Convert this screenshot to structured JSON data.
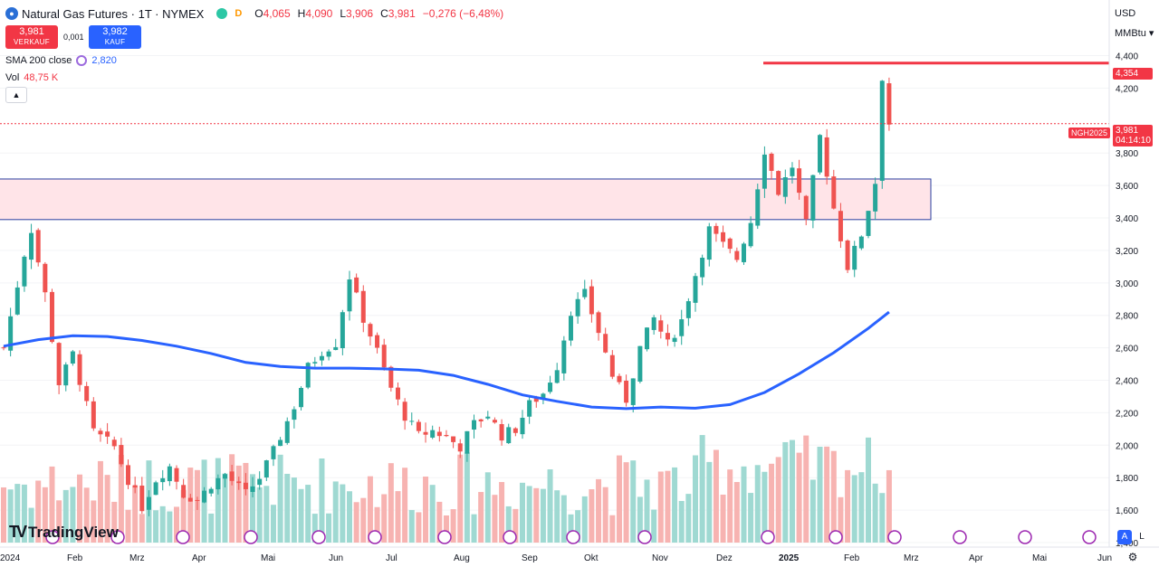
{
  "header": {
    "title": "Natural Gas Futures · 1T · NYMEX",
    "interval_badge": "D",
    "ohlc": [
      {
        "label": "O",
        "value": "4,065"
      },
      {
        "label": "H",
        "value": "4,090"
      },
      {
        "label": "L",
        "value": "3,906"
      },
      {
        "label": "C",
        "value": "3,981"
      },
      {
        "label": "",
        "value": "−0,276 (−6,48%)"
      }
    ]
  },
  "trade": {
    "sell_price": "3,981",
    "sell_label": "VERKAUF",
    "spread": "0,001",
    "buy_price": "3,982",
    "buy_label": "KAUF"
  },
  "indicators": {
    "sma_label": "SMA 200 close",
    "sma_value": "2,820",
    "vol_label": "Vol",
    "vol_value": "48,75 K"
  },
  "axis": {
    "currency": "USD",
    "unit": "MMBtu",
    "y_ticks": [
      "4,400",
      "4,200",
      "3,800",
      "3,600",
      "3,400",
      "3,200",
      "3,000",
      "2,800",
      "2,600",
      "2,400",
      "2,200",
      "2,000",
      "1,800",
      "1,600",
      "1,400"
    ],
    "x_labels": [
      "2024",
      "Feb",
      "Mrz",
      "Apr",
      "Mai",
      "Jun",
      "Jul",
      "Aug",
      "Sep",
      "Okt",
      "Nov",
      "Dez",
      "2025",
      "Feb",
      "Mrz",
      "Apr",
      "Mai",
      "Jun"
    ]
  },
  "tags": {
    "resistance": "4,354",
    "current_price": "3,981",
    "countdown": "04:14:10",
    "ticker": "NGH2025"
  },
  "logo": {
    "text": "TradingView"
  },
  "scale_buttons": {
    "auto": "A",
    "log": "L"
  },
  "colors": {
    "up": "#26a69a",
    "down": "#ef5350",
    "sma": "#2962ff",
    "resistance": "#f23645",
    "zone_fill": "#ffe4e8",
    "zone_border": "#2a3fa0"
  },
  "chart_data": {
    "type": "candlestick",
    "ylim": [
      1400,
      4520
    ],
    "resistance_level": 4354,
    "supply_zone": [
      3390,
      3640
    ],
    "last_price": 3981,
    "sma200": [
      [
        0,
        2610
      ],
      [
        5,
        2650
      ],
      [
        10,
        2675
      ],
      [
        15,
        2670
      ],
      [
        20,
        2645
      ],
      [
        25,
        2610
      ],
      [
        30,
        2565
      ],
      [
        35,
        2510
      ],
      [
        40,
        2485
      ],
      [
        45,
        2475
      ],
      [
        50,
        2475
      ],
      [
        55,
        2470
      ],
      [
        60,
        2462
      ],
      [
        65,
        2430
      ],
      [
        70,
        2375
      ],
      [
        75,
        2310
      ],
      [
        80,
        2270
      ],
      [
        85,
        2235
      ],
      [
        90,
        2225
      ],
      [
        95,
        2235
      ],
      [
        100,
        2228
      ],
      [
        105,
        2250
      ],
      [
        110,
        2325
      ],
      [
        115,
        2440
      ],
      [
        120,
        2570
      ],
      [
        125,
        2720
      ],
      [
        128,
        2820
      ]
    ],
    "candles_note": "daily candles Jan 2024 – 21 Feb 2025",
    "close_path": [
      [
        0,
        2600
      ],
      [
        3,
        3180
      ],
      [
        4,
        3330
      ],
      [
        6,
        2930
      ],
      [
        8,
        2380
      ],
      [
        10,
        2560
      ],
      [
        13,
        2080
      ],
      [
        16,
        1990
      ],
      [
        18,
        1790
      ],
      [
        20,
        1620
      ],
      [
        22,
        1790
      ],
      [
        24,
        1870
      ],
      [
        26,
        1700
      ],
      [
        28,
        1660
      ],
      [
        30,
        1760
      ],
      [
        32,
        1820
      ],
      [
        35,
        1700
      ],
      [
        37,
        1800
      ],
      [
        39,
        1960
      ],
      [
        42,
        2240
      ],
      [
        44,
        2480
      ],
      [
        46,
        2580
      ],
      [
        48,
        2630
      ],
      [
        50,
        3040
      ],
      [
        52,
        2780
      ],
      [
        54,
        2580
      ],
      [
        56,
        2350
      ],
      [
        58,
        2180
      ],
      [
        60,
        2060
      ],
      [
        62,
        2090
      ],
      [
        64,
        2050
      ],
      [
        66,
        1990
      ],
      [
        68,
        2130
      ],
      [
        70,
        2190
      ],
      [
        72,
        2060
      ],
      [
        74,
        2100
      ],
      [
        76,
        2250
      ],
      [
        78,
        2320
      ],
      [
        80,
        2490
      ],
      [
        82,
        2830
      ],
      [
        84,
        2930
      ],
      [
        86,
        2700
      ],
      [
        88,
        2430
      ],
      [
        90,
        2280
      ],
      [
        92,
        2600
      ],
      [
        94,
        2780
      ],
      [
        96,
        2620
      ],
      [
        98,
        2770
      ],
      [
        100,
        3050
      ],
      [
        102,
        3330
      ],
      [
        104,
        3230
      ],
      [
        106,
        3150
      ],
      [
        108,
        3380
      ],
      [
        110,
        3820
      ],
      [
        112,
        3560
      ],
      [
        114,
        3720
      ],
      [
        116,
        3360
      ],
      [
        118,
        3900
      ],
      [
        120,
        3460
      ],
      [
        122,
        3100
      ],
      [
        124,
        3300
      ],
      [
        126,
        3620
      ],
      [
        127,
        4270
      ],
      [
        128,
        3981
      ]
    ],
    "volume_range": [
      0,
      100
    ]
  }
}
